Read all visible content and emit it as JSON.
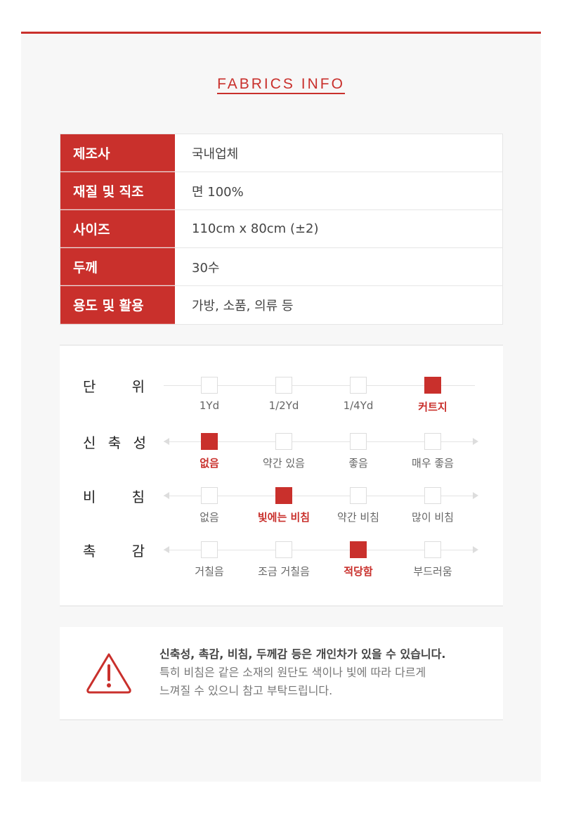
{
  "title": "FABRICS INFO",
  "accent": "#c9302c",
  "specs": [
    {
      "label": "제조사",
      "value": "국내업체"
    },
    {
      "label": "재질 및 직조",
      "value": "면 100%"
    },
    {
      "label": "사이즈",
      "value": "110cm x 80cm (±2)"
    },
    {
      "label": "두께",
      "value": "30수"
    },
    {
      "label": "용도 및 활용",
      "value": "가방, 소품, 의류 등"
    }
  ],
  "ratings": [
    {
      "name": [
        "단",
        "위"
      ],
      "options": [
        "1Yd",
        "1/2Yd",
        "1/4Yd",
        "커트지"
      ],
      "selected": 3,
      "arrows": false
    },
    {
      "name": [
        "신",
        "축",
        "성"
      ],
      "options": [
        "없음",
        "약간 있음",
        "좋음",
        "매우 좋음"
      ],
      "selected": 0,
      "arrows": true
    },
    {
      "name": [
        "비",
        "침"
      ],
      "options": [
        "없음",
        "빛에는 비침",
        "약간 비침",
        "많이 비침"
      ],
      "selected": 1,
      "arrows": true
    },
    {
      "name": [
        "촉",
        "감"
      ],
      "options": [
        "거칠음",
        "조금 거칠음",
        "적당함",
        "부드러움"
      ],
      "selected": 2,
      "arrows": true
    }
  ],
  "notice": {
    "icon": "warning-triangle-icon",
    "bold": "신축성, 촉감, 비침, 두께감 등은 개인차가 있을 수 있습니다.",
    "line2": "특히 비침은 같은 소재의 원단도 색이나 빛에 따라 다르게",
    "line3": "느껴질 수 있으니 참고 부탁드립니다."
  }
}
